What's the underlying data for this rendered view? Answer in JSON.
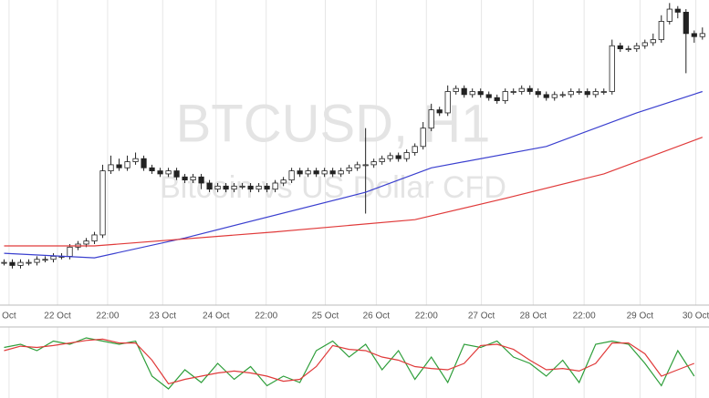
{
  "chart_data": {
    "type": "candlestick",
    "watermark_title": "BTCUSD, H1",
    "watermark_subtitle": "Bitcoin vs US Dollar CFD",
    "up_color": "#ffffff",
    "down_color": "#222222",
    "outline_color": "#222222",
    "grid": true,
    "xlim": [
      -0.5,
      85.8
    ],
    "ylim": [
      0,
      100
    ],
    "xticks": [
      {
        "value": 0.6,
        "label": "Oct"
      },
      {
        "value": 6.5,
        "label": "22 Oct"
      },
      {
        "value": 12.6,
        "label": "22:00"
      },
      {
        "value": 19.3,
        "label": "23 Oct"
      },
      {
        "value": 25.8,
        "label": "24 Oct"
      },
      {
        "value": 31.9,
        "label": "22:00"
      },
      {
        "value": 39.1,
        "label": "25 Oct"
      },
      {
        "value": 45.3,
        "label": "26 Oct"
      },
      {
        "value": 51.4,
        "label": "22:00"
      },
      {
        "value": 58.1,
        "label": "27 Oct"
      },
      {
        "value": 64.4,
        "label": "28 Oct"
      },
      {
        "value": 70.6,
        "label": "22:00"
      },
      {
        "value": 77.4,
        "label": "29 Oct"
      },
      {
        "value": 84.2,
        "label": "30 Oct"
      }
    ],
    "open": [
      14,
      14,
      13,
      14,
      14,
      15,
      15,
      16,
      16,
      19,
      20,
      21,
      23,
      44,
      46,
      45,
      47,
      48,
      45,
      44,
      43,
      44,
      42,
      41,
      42,
      40,
      38,
      39,
      38,
      39,
      39,
      38,
      39,
      38,
      40,
      41,
      44,
      43,
      44,
      43,
      44,
      43,
      44,
      45,
      46,
      46,
      47,
      48,
      49,
      48,
      50,
      52,
      58,
      64,
      63,
      70,
      71,
      69,
      70,
      69,
      68,
      67,
      70,
      70,
      71,
      70,
      69,
      68,
      69,
      69,
      70,
      70,
      69,
      70,
      70,
      85,
      84,
      84,
      85,
      86,
      87,
      93,
      97,
      96,
      89,
      88
    ],
    "high": [
      15,
      15,
      15,
      15,
      16,
      16,
      17,
      17,
      20,
      21,
      22,
      24,
      46,
      49,
      48,
      49,
      50,
      49,
      46,
      45,
      45,
      45,
      43,
      43,
      43,
      41,
      40,
      40,
      40,
      40,
      40,
      40,
      40,
      41,
      42,
      45,
      45,
      45,
      45,
      45,
      45,
      45,
      46,
      47,
      58,
      48,
      49,
      50,
      50,
      51,
      53,
      60,
      66,
      65,
      72,
      72,
      72,
      71,
      71,
      70,
      69,
      71,
      71,
      72,
      72,
      71,
      70,
      70,
      70,
      71,
      71,
      71,
      71,
      71,
      87,
      86,
      85,
      86,
      87,
      89,
      95,
      99,
      98,
      97,
      90,
      91
    ],
    "low": [
      13,
      12,
      12,
      13,
      13,
      14,
      14,
      15,
      15,
      18,
      19,
      20,
      22,
      43,
      44,
      44,
      46,
      44,
      43,
      42,
      42,
      41,
      40,
      40,
      38,
      37,
      37,
      37,
      37,
      38,
      37,
      37,
      37,
      37,
      39,
      40,
      42,
      42,
      42,
      42,
      42,
      42,
      43,
      44,
      30,
      45,
      46,
      47,
      47,
      47,
      49,
      51,
      57,
      62,
      62,
      69,
      68,
      68,
      68,
      67,
      66,
      66,
      69,
      69,
      69,
      68,
      67,
      67,
      68,
      68,
      69,
      68,
      68,
      69,
      69,
      83,
      83,
      83,
      84,
      85,
      86,
      92,
      94,
      76,
      86,
      87
    ],
    "close": [
      14,
      13,
      14,
      14,
      15,
      15,
      16,
      16,
      19,
      20,
      21,
      23,
      44,
      46,
      45,
      47,
      48,
      45,
      44,
      43,
      44,
      42,
      41,
      42,
      40,
      38,
      39,
      38,
      39,
      39,
      38,
      39,
      38,
      40,
      41,
      44,
      43,
      44,
      43,
      44,
      43,
      44,
      45,
      46,
      46,
      47,
      48,
      49,
      48,
      50,
      52,
      58,
      64,
      63,
      70,
      71,
      69,
      70,
      69,
      68,
      67,
      70,
      70,
      71,
      70,
      69,
      68,
      69,
      69,
      70,
      70,
      69,
      70,
      70,
      85,
      84,
      84,
      85,
      86,
      87,
      93,
      97,
      96,
      89,
      88,
      89
    ],
    "overlays": [
      {
        "color": "#3a3fcf",
        "x": [
          0,
          11,
          22,
          44,
          52,
          66,
          77,
          85
        ],
        "values": [
          17,
          15.5,
          22,
          37,
          45,
          52,
          63,
          70
        ]
      },
      {
        "color": "#e03a3a",
        "x": [
          0,
          11,
          33,
          50,
          61,
          73,
          85
        ],
        "values": [
          19.4,
          19.4,
          24,
          28,
          35,
          43,
          55
        ]
      }
    ],
    "indicator": {
      "type": "line",
      "ylim": [
        0,
        100
      ],
      "x": [
        0,
        2,
        4,
        6,
        8,
        10,
        12,
        14,
        16,
        18,
        20,
        22,
        24,
        26,
        28,
        30,
        32,
        34,
        36,
        38,
        40,
        42,
        44,
        46,
        48,
        50,
        52,
        54,
        56,
        58,
        60,
        62,
        64,
        66,
        68,
        70,
        72,
        74,
        76,
        78,
        80,
        82,
        84
      ],
      "series": [
        {
          "color": "#2e9e3a",
          "values": [
            75,
            80,
            70,
            85,
            80,
            90,
            85,
            80,
            85,
            30,
            10,
            40,
            20,
            50,
            25,
            45,
            15,
            30,
            20,
            70,
            85,
            60,
            80,
            40,
            70,
            25,
            60,
            20,
            80,
            75,
            85,
            60,
            50,
            30,
            55,
            20,
            80,
            85,
            80,
            50,
            15,
            70,
            30
          ]
        },
        {
          "color": "#e03a3a",
          "values": [
            70,
            77,
            75,
            78,
            82,
            86,
            88,
            82,
            82,
            55,
            18,
            25,
            30,
            35,
            38,
            35,
            30,
            22,
            25,
            45,
            78,
            72,
            70,
            60,
            55,
            45,
            42,
            40,
            50,
            78,
            80,
            72,
            55,
            40,
            42,
            38,
            50,
            82,
            82,
            65,
            30,
            40,
            50
          ]
        }
      ]
    }
  }
}
